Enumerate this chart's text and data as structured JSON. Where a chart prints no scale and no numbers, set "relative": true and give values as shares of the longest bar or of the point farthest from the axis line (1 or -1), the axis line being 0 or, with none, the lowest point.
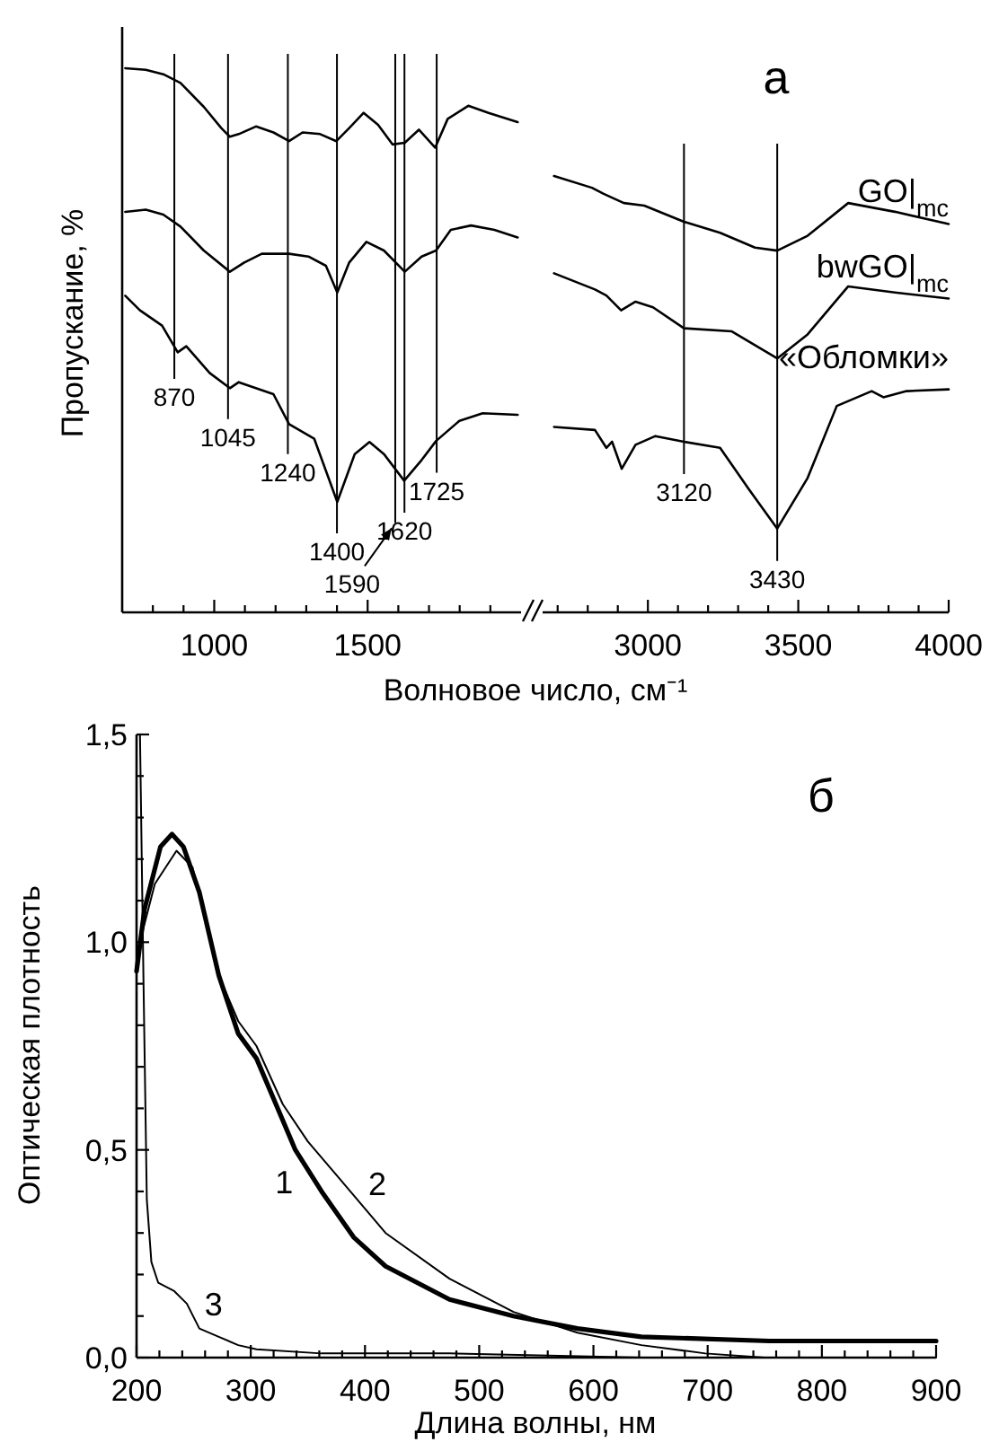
{
  "chart_data": [
    {
      "type": "line",
      "relative": true,
      "tick_labels": "x",
      "xlabel": "Волновое число, см⁻¹",
      "ylabel": "Пропускание, %",
      "xlim": [
        700,
        2000
      ],
      "xticks": [
        {
          "value": 800,
          "label": null
        },
        {
          "value": 900,
          "label": null
        },
        1000,
        {
          "value": 1100,
          "label": null
        },
        {
          "value": 1200,
          "label": null
        },
        {
          "value": 1300,
          "label": null
        },
        {
          "value": 1400,
          "label": null
        },
        1500,
        {
          "value": 1600,
          "label": null
        },
        {
          "value": 1700,
          "label": null
        },
        {
          "value": 1800,
          "label": null
        },
        {
          "value": 1900,
          "label": null
        }
      ],
      "series": [
        {
          "color": "#000000",
          "x": [
            710,
            777,
            834,
            890,
            966,
            1023,
            1051,
            1080,
            1136,
            1193,
            1244,
            1288,
            1345,
            1398,
            1440,
            1487,
            1534,
            1581,
            1621,
            1667,
            1720,
            1761,
            1828,
            1894,
            1989
          ],
          "values": [
            1.0,
            0.997,
            0.989,
            0.973,
            0.929,
            0.89,
            0.874,
            0.879,
            0.893,
            0.882,
            0.866,
            0.882,
            0.879,
            0.866,
            0.89,
            0.918,
            0.896,
            0.86,
            0.863,
            0.887,
            0.854,
            0.907,
            0.931,
            0.918,
            0.901
          ]
        },
        {
          "color": "#000000",
          "x": [
            710,
            777,
            834,
            890,
            966,
            1051,
            1098,
            1155,
            1244,
            1307,
            1364,
            1401,
            1440,
            1496,
            1553,
            1621,
            1676,
            1723,
            1771,
            1837,
            1913,
            1989
          ],
          "values": [
            0.736,
            0.74,
            0.731,
            0.709,
            0.665,
            0.626,
            0.643,
            0.659,
            0.659,
            0.654,
            0.637,
            0.588,
            0.643,
            0.681,
            0.665,
            0.626,
            0.654,
            0.665,
            0.703,
            0.711,
            0.703,
            0.689
          ]
        },
        {
          "color": "#000000",
          "x": [
            710,
            758,
            830,
            881,
            909,
            985,
            1051,
            1080,
            1193,
            1244,
            1326,
            1401,
            1458,
            1506,
            1553,
            1619,
            1676,
            1723,
            1799,
            1875,
            1989
          ],
          "values": [
            0.582,
            0.555,
            0.527,
            0.478,
            0.489,
            0.44,
            0.412,
            0.423,
            0.401,
            0.346,
            0.319,
            0.203,
            0.291,
            0.313,
            0.291,
            0.242,
            0.28,
            0.315,
            0.352,
            0.366,
            0.363
          ]
        }
      ],
      "ref_lines": [
        {
          "axis": "x",
          "value": 870,
          "label": "870"
        },
        {
          "axis": "x",
          "value": 1045,
          "label": "1045"
        },
        {
          "axis": "x",
          "value": 1240,
          "label": "1240"
        },
        {
          "axis": "x",
          "value": 1400,
          "label": "1400"
        },
        {
          "axis": "x",
          "value": 1590,
          "label": "1590"
        },
        {
          "axis": "x",
          "value": 1620,
          "label": "1620"
        },
        {
          "axis": "x",
          "value": 1725,
          "label": "1725"
        }
      ]
    },
    {
      "type": "line",
      "relative": true,
      "tick_labels": "x",
      "title": "а",
      "xlim": [
        2650,
        4000
      ],
      "xticks": [
        {
          "value": 2700,
          "label": null
        },
        {
          "value": 2800,
          "label": null
        },
        {
          "value": 2900,
          "label": null
        },
        3000,
        {
          "value": 3100,
          "label": null
        },
        {
          "value": 3200,
          "label": null
        },
        {
          "value": 3300,
          "label": null
        },
        {
          "value": 3400,
          "label": null
        },
        3500,
        {
          "value": 3600,
          "label": null
        },
        {
          "value": 3700,
          "label": null
        },
        {
          "value": 3800,
          "label": null
        },
        {
          "value": 3900,
          "label": null
        },
        4000
      ],
      "series": [
        {
          "name": "GO|$_{mc}$",
          "color": "#000000",
          "x": [
            2688,
            2814,
            2853,
            2920,
            2988,
            3120,
            3240,
            3356,
            3430,
            3531,
            3666,
            3821,
            4000
          ],
          "values": [
            1.0,
            0.973,
            0.959,
            0.938,
            0.932,
            0.895,
            0.87,
            0.836,
            0.829,
            0.863,
            0.938,
            0.918,
            0.89
          ]
        },
        {
          "name": "bwGO|$_{mc}$",
          "color": "#000000",
          "x": [
            2688,
            2824,
            2862,
            2911,
            2959,
            3017,
            3120,
            3279,
            3430,
            3531,
            3666,
            3821,
            4000
          ],
          "values": [
            0.777,
            0.74,
            0.726,
            0.692,
            0.712,
            0.699,
            0.651,
            0.644,
            0.582,
            0.637,
            0.747,
            0.733,
            0.719
          ]
        },
        {
          "name": "«Обломки»",
          "color": "#000000",
          "x": [
            2688,
            2824,
            2862,
            2881,
            2913,
            2959,
            3025,
            3120,
            3240,
            3337,
            3430,
            3531,
            3628,
            3744,
            3783,
            3860,
            4000
          ],
          "values": [
            0.425,
            0.418,
            0.377,
            0.391,
            0.329,
            0.384,
            0.404,
            0.391,
            0.377,
            0.281,
            0.192,
            0.308,
            0.473,
            0.507,
            0.493,
            0.507,
            0.511
          ]
        }
      ],
      "ref_lines": [
        {
          "axis": "x",
          "value": 3120,
          "label": "3120"
        },
        {
          "axis": "x",
          "value": 3430,
          "label": "3430"
        }
      ]
    },
    {
      "type": "line",
      "title": "б",
      "xlabel": "Длина волны, нм",
      "ylabel": "Оптическая плотность",
      "xlim": [
        200,
        900
      ],
      "ylim": [
        0,
        1.5
      ],
      "xticks": [
        200,
        {
          "value": 220,
          "label": null
        },
        {
          "value": 240,
          "label": null
        },
        {
          "value": 260,
          "label": null
        },
        {
          "value": 280,
          "label": null
        },
        300,
        {
          "value": 320,
          "label": null
        },
        {
          "value": 340,
          "label": null
        },
        {
          "value": 360,
          "label": null
        },
        {
          "value": 380,
          "label": null
        },
        400,
        {
          "value": 420,
          "label": null
        },
        {
          "value": 440,
          "label": null
        },
        {
          "value": 460,
          "label": null
        },
        {
          "value": 480,
          "label": null
        },
        500,
        {
          "value": 520,
          "label": null
        },
        {
          "value": 540,
          "label": null
        },
        {
          "value": 560,
          "label": null
        },
        {
          "value": 580,
          "label": null
        },
        600,
        {
          "value": 620,
          "label": null
        },
        {
          "value": 640,
          "label": null
        },
        {
          "value": 660,
          "label": null
        },
        {
          "value": 680,
          "label": null
        },
        700,
        {
          "value": 720,
          "label": null
        },
        {
          "value": 740,
          "label": null
        },
        {
          "value": 760,
          "label": null
        },
        {
          "value": 780,
          "label": null
        },
        800,
        {
          "value": 820,
          "label": null
        },
        {
          "value": 840,
          "label": null
        },
        {
          "value": 860,
          "label": null
        },
        {
          "value": 880,
          "label": null
        },
        900
      ],
      "yticks": [
        {
          "value": 0,
          "label": "0,0"
        },
        {
          "value": 0.1,
          "label": null
        },
        {
          "value": 0.2,
          "label": null
        },
        {
          "value": 0.3,
          "label": null
        },
        {
          "value": 0.4,
          "label": null
        },
        {
          "value": 0.5,
          "label": "0,5"
        },
        {
          "value": 0.6,
          "label": null
        },
        {
          "value": 0.7,
          "label": null
        },
        {
          "value": 0.8,
          "label": null
        },
        {
          "value": 0.9,
          "label": null
        },
        {
          "value": 1,
          "label": "1,0"
        },
        {
          "value": 1.1,
          "label": null
        },
        {
          "value": 1.2,
          "label": null
        },
        {
          "value": 1.3,
          "label": null
        },
        {
          "value": 1.4,
          "label": null
        },
        {
          "value": 1.5,
          "label": "1,5"
        }
      ],
      "series": [
        {
          "name": "1",
          "color": "#000000",
          "x": [
            200,
            207,
            221,
            231,
            241,
            255,
            272,
            289,
            305,
            322,
            339,
            362,
            390,
            418,
            474,
            530,
            586,
            642,
            754,
            900
          ],
          "values": [
            0.93,
            1.08,
            1.23,
            1.26,
            1.23,
            1.12,
            0.92,
            0.78,
            0.72,
            0.61,
            0.5,
            0.4,
            0.29,
            0.22,
            0.14,
            0.1,
            0.07,
            0.05,
            0.04,
            0.04
          ]
        },
        {
          "name": "2",
          "color": "#000000",
          "x": [
            200,
            216,
            235,
            249,
            272,
            289,
            305,
            328,
            350,
            378,
            418,
            474,
            530,
            586,
            642,
            698,
            750
          ],
          "values": [
            0.97,
            1.14,
            1.22,
            1.18,
            0.92,
            0.81,
            0.75,
            0.61,
            0.52,
            0.43,
            0.3,
            0.19,
            0.11,
            0.06,
            0.03,
            0.01,
            0
          ]
        },
        {
          "name": "3",
          "color": "#000000",
          "x": [
            203,
            206,
            209,
            213,
            219,
            233,
            244,
            255,
            272,
            289,
            305,
            362,
            474,
            642,
            900
          ],
          "values": [
            1.5,
            0.92,
            0.38,
            0.23,
            0.18,
            0.16,
            0.13,
            0.07,
            0.05,
            0.03,
            0.02,
            0.01,
            0.01,
            0,
            0
          ]
        }
      ]
    }
  ]
}
